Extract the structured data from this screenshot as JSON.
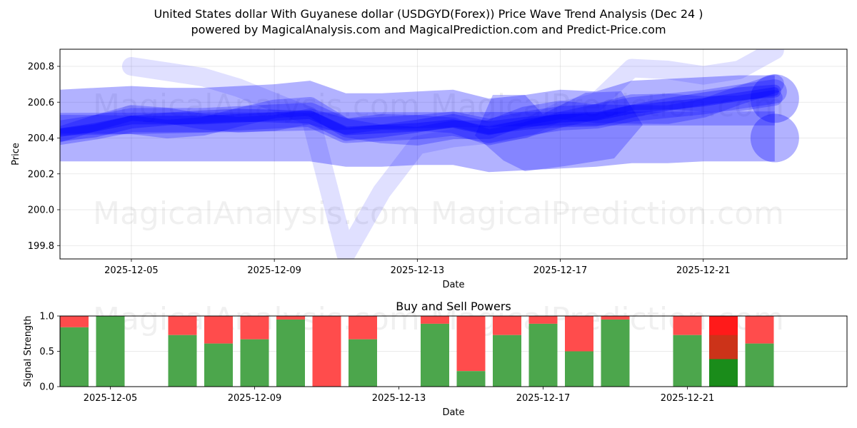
{
  "header": {
    "title": "United States dollar With Guyanese dollar (USDGYD(Forex)) Price Wave Trend Analysis (Dec 24 )",
    "subtitle": "powered by MagicalAnalysis.com and MagicalPrediction.com and Predict-Price.com"
  },
  "watermarks": [
    "MagicalAnalysis.com",
    "MagicalPrediction.com"
  ],
  "colors": {
    "wave": "#0000ff",
    "buy": "#4ca64c",
    "sell": "#ff4c4c",
    "buy_strong": "#1a8c1a",
    "sell_strong": "#ff1a1a",
    "sell_mid": "#cc3319"
  },
  "chart_data": [
    {
      "type": "area",
      "title": "Price Wave Trend Analysis",
      "xlabel": "Date",
      "ylabel": "Price",
      "ylim": [
        199.72,
        200.89
      ],
      "yticks": [
        "199.8",
        "200.0",
        "200.2",
        "200.4",
        "200.6",
        "200.8"
      ],
      "xticks": [
        "2025-12-05",
        "2025-12-09",
        "2025-12-13",
        "2025-12-17",
        "2025-12-21"
      ],
      "grid": true,
      "x": [
        "2025-12-02",
        "2025-12-03",
        "2025-12-04",
        "2025-12-05",
        "2025-12-06",
        "2025-12-07",
        "2025-12-08",
        "2025-12-09",
        "2025-12-10",
        "2025-12-11",
        "2025-12-12",
        "2025-12-13",
        "2025-12-14",
        "2025-12-15",
        "2025-12-16",
        "2025-12-17",
        "2025-12-18",
        "2025-12-19",
        "2025-12-20",
        "2025-12-21",
        "2025-12-22",
        "2025-12-23",
        "2025-12-24"
      ],
      "series": [
        {
          "name": "wave-center",
          "values": [
            200.4,
            200.43,
            200.46,
            200.5,
            200.5,
            200.5,
            200.51,
            200.52,
            200.53,
            200.44,
            200.45,
            200.46,
            200.48,
            200.44,
            200.48,
            200.51,
            200.52,
            200.56,
            200.58,
            200.6,
            200.63,
            200.66,
            200.69
          ]
        },
        {
          "name": "band-upper",
          "values": [
            200.66,
            200.67,
            200.68,
            200.69,
            200.68,
            200.68,
            200.69,
            200.7,
            200.72,
            200.65,
            200.65,
            200.66,
            200.67,
            200.62,
            200.64,
            200.67,
            200.66,
            200.72,
            200.73,
            200.74,
            200.75,
            200.75,
            200.74
          ]
        },
        {
          "name": "band-lower",
          "values": [
            200.27,
            200.27,
            200.27,
            200.27,
            200.27,
            200.27,
            200.27,
            200.27,
            200.27,
            200.24,
            200.24,
            200.25,
            200.25,
            200.21,
            200.22,
            200.23,
            200.24,
            200.26,
            200.26,
            200.27,
            200.27,
            200.27,
            200.27
          ]
        },
        {
          "name": "outlier-spike",
          "values": [
            null,
            null,
            null,
            200.8,
            200.77,
            200.74,
            200.68,
            200.6,
            200.52,
            199.75,
            200.1,
            200.36,
            200.4,
            200.42,
            200.45,
            200.55,
            200.6,
            200.79,
            200.78,
            200.75,
            200.78,
            200.89,
            200.76
          ]
        }
      ]
    },
    {
      "type": "bar",
      "title": "Buy and Sell Powers",
      "xlabel": "Date",
      "ylabel": "Signal Strength",
      "ylim": [
        0,
        1
      ],
      "yticks": [
        "0.0",
        "0.5",
        "1.0"
      ],
      "xticks": [
        "2025-12-05",
        "2025-12-09",
        "2025-12-13",
        "2025-12-17",
        "2025-12-21"
      ],
      "grid": true,
      "categories": [
        "2025-12-04",
        "2025-12-05",
        "2025-12-07",
        "2025-12-08",
        "2025-12-09",
        "2025-12-10",
        "2025-12-11",
        "2025-12-12",
        "2025-12-14",
        "2025-12-15",
        "2025-12-16",
        "2025-12-17",
        "2025-12-18",
        "2025-12-19",
        "2025-12-21",
        "2025-12-22",
        "2025-12-23"
      ],
      "series": [
        {
          "name": "Buy",
          "values": [
            0.84,
            1.0,
            0.73,
            0.61,
            0.67,
            0.95,
            0.0,
            0.67,
            0.89,
            0.22,
            0.73,
            0.89,
            0.5,
            0.95,
            0.73,
            0.39,
            0.61
          ]
        },
        {
          "name": "Sell",
          "values": [
            0.16,
            0.0,
            0.27,
            0.39,
            0.33,
            0.05,
            1.0,
            0.33,
            0.11,
            0.78,
            0.27,
            0.11,
            0.5,
            0.05,
            0.27,
            0.61,
            0.39
          ]
        }
      ]
    }
  ]
}
